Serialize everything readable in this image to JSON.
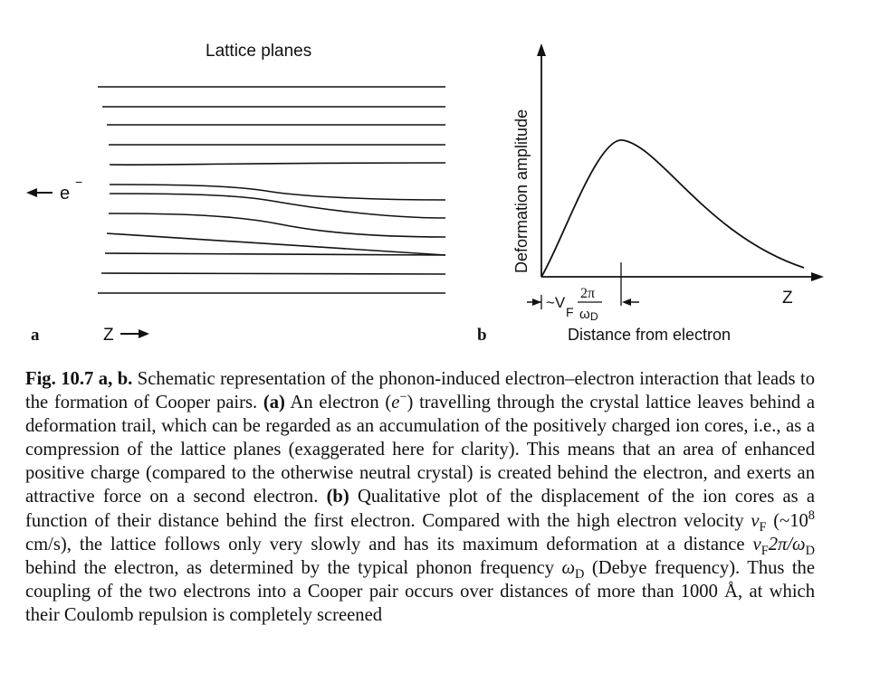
{
  "panel_a": {
    "panel_label": "a",
    "title": "Lattice planes",
    "electron_label": "e",
    "electron_charge": "−",
    "axis_label": "Z"
  },
  "panel_b": {
    "panel_label": "b",
    "y_axis_label": "Deformation amplitude",
    "x_axis_label": "Distance from electron",
    "x_end_label": "Z",
    "marker_tilde_v": "~V",
    "marker_subscript": "F",
    "marker_numerator": "2π",
    "marker_denominator": "ω",
    "marker_denominator_sub": "D"
  },
  "caption": {
    "fig_label": "Fig. 10.7 a, b.",
    "intro": " Schematic representation of the phonon-induced electron–electron interaction that leads to the formation of Cooper pairs. ",
    "a_label": "(a)",
    "part_a_1": " An electron (",
    "e_symbol": "e",
    "e_charge": "−",
    "part_a_2": ") travelling through the crystal lattice leaves behind a deformation trail, which can be regarded as an accumulation of the positively charged ion cores, i.e., as a compression of the lattice planes (exaggerated here for clarity). This means that an area of enhanced positive charge (compared to the otherwise neutral crystal) is created behind the electron, and exerts an attractive force on a second electron. ",
    "b_label": "(b)",
    "part_b_1": " Qualitative plot of the displacement of the ion cores as a function of their distance behind the first electron. Compared with the high electron velocity ",
    "vF_v": "v",
    "vF_sub": "F",
    "part_b_2": " (~10",
    "pow_exp": "8",
    "part_b_3": " cm/s), the lattice follows only very slowly and has its maximum deformation at a distance ",
    "dist_v": "v",
    "dist_sub": "F",
    "dist_rest": "2π/ω",
    "dist_sub2": "D",
    "part_b_4": " behind the electron, as determined by the typical phonon frequency ",
    "omega": "ω",
    "omega_sub": "D",
    "part_b_5": " (Debye frequency). Thus the coupling of the two electrons into a Cooper pair occurs over distances of more than 1000 Å, at which their Coulomb repulsion is completely screened"
  }
}
